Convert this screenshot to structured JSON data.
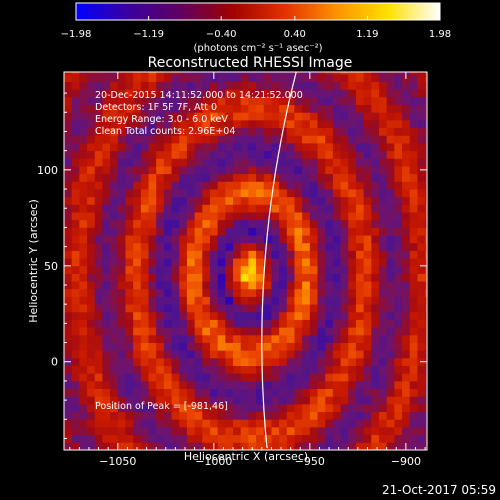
{
  "chart_data": {
    "type": "heatmap",
    "title": "Reconstructed RHESSI Image",
    "xlabel": "Heliocentric X (arcsec)",
    "ylabel": "Heliocentric Y (arcsec)",
    "xlim": [
      -1078,
      -889
    ],
    "ylim": [
      -46,
      151
    ],
    "x_ticks": [
      -1050,
      -1000,
      -950,
      -900
    ],
    "x_tick_labels": [
      "−1050",
      "−1000",
      "−950",
      "−900"
    ],
    "y_ticks": [
      0,
      50,
      100
    ],
    "y_tick_labels": [
      "0",
      "50",
      "100"
    ],
    "colorbar": {
      "range": [
        -1.98,
        1.98
      ],
      "ticks": [
        -1.98,
        -1.19,
        -0.4,
        0.4,
        1.19,
        1.98
      ],
      "tick_labels": [
        "−1.98",
        "−1.19",
        "−0.40",
        "0.40",
        "1.19",
        "1.98"
      ],
      "units_label": "(photons cm⁻² s⁻¹ asec⁻²)",
      "colors": [
        "#0000ff",
        "#3a00a0",
        "#600060",
        "#a00000",
        "#e23000",
        "#ff9000",
        "#ffe000",
        "#ffffff"
      ]
    },
    "info_lines": [
      "20-Dec-2015 14:11:52.000 to 14:21:52.000",
      "Detectors: 1F 5F 7F, Att 0",
      "Energy Range: 3.0 - 6.0 keV",
      "Clean     Total counts: 2.96E+04"
    ],
    "peak_label": "Position of Peak = [-981,46]",
    "peak": {
      "x": -981,
      "y": 46
    },
    "limb_line_color": "#ffffff"
  },
  "footer": {
    "timestamp": "21-Oct-2017 05:59"
  }
}
